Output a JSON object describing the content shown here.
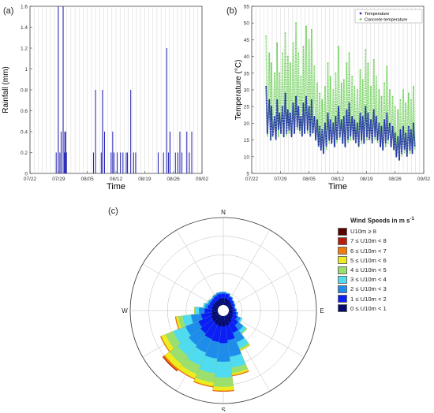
{
  "panels": {
    "a": "(a)",
    "b": "(b)",
    "c": "(c)"
  },
  "chart_data": [
    {
      "type": "bar",
      "panel": "(a)",
      "xlabel": "Time",
      "ylabel": "Rainfall (mm)",
      "xlim": [
        "07/22",
        "09/02"
      ],
      "ylim": [
        0,
        1.6
      ],
      "xticks": [
        "07/22",
        "07/29",
        "08/05",
        "08/12",
        "08/19",
        "08/26",
        "09/02"
      ],
      "yticks": [
        "0",
        "0.2",
        "0.4",
        "0.6",
        "0.8",
        "1",
        "1.2",
        "1.4",
        "1.6"
      ],
      "grid": true,
      "series": [
        {
          "color": "#1f1fb4",
          "x_days": [
            6.4,
            6.9,
            7.3,
            7.6,
            8.1,
            8.4,
            8.6,
            8.9,
            15.5,
            16.0,
            17.4,
            17.7,
            18.2,
            19.8,
            20.2,
            20.5,
            21.3,
            22.1,
            22.7,
            23.5,
            23.8,
            24.6,
            25.3,
            25.8,
            31.3,
            32.6,
            33.4,
            33.8,
            34.2,
            35.5,
            36.1,
            36.6,
            37.1,
            38.3,
            38.9,
            39.5
          ],
          "values": [
            0.2,
            1.6,
            0.2,
            0.4,
            1.6,
            0.2,
            0.4,
            0.2,
            0.2,
            0.8,
            0.2,
            0.8,
            0.4,
            0.2,
            0.4,
            0.2,
            0.2,
            0.2,
            0.2,
            0.2,
            0.2,
            0.8,
            0.2,
            0.2,
            0.2,
            0.2,
            1.2,
            0.2,
            0.4,
            0.2,
            0.2,
            0.4,
            0.2,
            0.4,
            0.2,
            0.4
          ],
          "widths": [
            1,
            1,
            1,
            1,
            1,
            1,
            2,
            1,
            1,
            1,
            1,
            1,
            1,
            1,
            1,
            1,
            1,
            1,
            1,
            1,
            1,
            1,
            1,
            1,
            1,
            1,
            1,
            1,
            1,
            1,
            1,
            1,
            1,
            1,
            1,
            1
          ]
        }
      ]
    },
    {
      "type": "scatter",
      "panel": "(b)",
      "xlabel": "Time",
      "ylabel": "Temperature (°C)",
      "xlim": [
        "07/22",
        "09/02"
      ],
      "ylim": [
        5,
        55
      ],
      "xticks": [
        "07/22",
        "07/29",
        "08/05",
        "08/12",
        "08/19",
        "08/26",
        "09/02"
      ],
      "yticks": [
        "5",
        "10",
        "15",
        "20",
        "25",
        "30",
        "35",
        "40",
        "45",
        "50",
        "55"
      ],
      "grid": true,
      "legend": "top-right",
      "series": [
        {
          "name": "Temperature",
          "color": "#1f2fa8",
          "x_days": [
            3.5,
            4.3,
            4.8,
            5.6,
            6.2,
            6.8,
            7.5,
            8.2,
            8.8,
            9.4,
            10.1,
            10.8,
            11.4,
            12.0,
            12.6,
            13.3,
            14.0,
            14.6,
            15.3,
            16.0,
            16.6,
            17.2,
            17.9,
            18.6,
            19.2,
            19.9,
            20.5,
            21.2,
            21.9,
            22.5,
            23.2,
            23.8,
            24.5,
            25.1,
            25.8,
            26.5,
            27.1,
            27.8,
            28.4,
            29.1,
            29.8,
            30.4,
            31.1,
            31.7,
            32.4,
            33.0,
            33.7,
            34.4,
            35.0,
            35.7,
            36.3,
            37.0,
            37.6,
            38.3,
            38.9,
            39.5
          ],
          "min": [
            17,
            15,
            16,
            15,
            18,
            17,
            16,
            17,
            18,
            16,
            17,
            19,
            18,
            16,
            17,
            18,
            16,
            17,
            15,
            13,
            12,
            11,
            13,
            15,
            14,
            13,
            15,
            16,
            14,
            13,
            15,
            16,
            15,
            14,
            13,
            15,
            14,
            16,
            15,
            14,
            16,
            15,
            13,
            12,
            14,
            15,
            13,
            12,
            10,
            9,
            11,
            12,
            10,
            12,
            11,
            13
          ],
          "max": [
            31,
            27,
            25,
            22,
            27,
            23,
            25,
            29,
            24,
            23,
            26,
            28,
            25,
            22,
            26,
            28,
            25,
            27,
            22,
            21,
            19,
            18,
            20,
            23,
            21,
            20,
            22,
            25,
            21,
            22,
            24,
            26,
            22,
            21,
            20,
            23,
            22,
            25,
            23,
            21,
            24,
            22,
            20,
            19,
            21,
            23,
            20,
            19,
            17,
            16,
            18,
            19,
            17,
            19,
            18,
            20
          ]
        },
        {
          "name": "Concrete temperature",
          "color": "#6fd15a",
          "x_days": [
            3.5,
            4.3,
            4.8,
            5.6,
            6.2,
            6.8,
            7.5,
            8.2,
            8.8,
            9.4,
            10.1,
            10.8,
            11.4,
            12.0,
            12.6,
            13.3,
            14.0,
            14.6,
            15.3,
            16.0,
            16.6,
            17.2,
            17.9,
            18.6,
            19.2,
            19.9,
            20.5,
            21.2,
            21.9,
            22.5,
            23.2,
            23.8,
            24.5,
            25.1,
            25.8,
            26.5,
            27.1,
            27.8,
            28.4,
            29.1,
            29.8,
            30.4,
            31.1,
            31.7,
            32.4,
            33.0,
            33.7,
            34.4,
            35.0,
            35.7,
            36.3,
            37.0,
            37.6,
            38.3,
            38.9,
            39.5
          ],
          "min": [
            16,
            15,
            16,
            15,
            16,
            17,
            16,
            16,
            17,
            16,
            17,
            18,
            17,
            16,
            17,
            17,
            16,
            17,
            15,
            13,
            12,
            11,
            12,
            14,
            14,
            13,
            14,
            15,
            14,
            13,
            14,
            15,
            15,
            14,
            13,
            14,
            14,
            15,
            15,
            14,
            15,
            14,
            13,
            12,
            13,
            14,
            13,
            12,
            10,
            9,
            10,
            11,
            10,
            11,
            11,
            12
          ],
          "max": [
            46,
            41,
            38,
            35,
            44,
            35,
            41,
            47,
            40,
            38,
            44,
            50,
            41,
            34,
            43,
            49,
            45,
            48,
            37,
            32,
            29,
            27,
            31,
            38,
            34,
            30,
            35,
            43,
            32,
            33,
            38,
            41,
            34,
            31,
            30,
            36,
            33,
            42,
            38,
            31,
            39,
            34,
            30,
            28,
            32,
            37,
            30,
            28,
            25,
            24,
            27,
            30,
            26,
            29,
            27,
            31
          ]
        }
      ]
    },
    {
      "type": "wind-rose",
      "panel": "(c)",
      "title": "",
      "directions": [
        "N",
        "E",
        "S",
        "W"
      ],
      "sector_angles_deg": [
        0,
        15,
        30,
        45,
        60,
        75,
        90,
        105,
        120,
        135,
        150,
        165,
        180,
        195,
        210,
        225,
        240,
        255,
        270,
        285,
        300,
        315,
        330,
        345
      ],
      "legend": {
        "title": "Wind Speeds in m s",
        "title_unit_sup": "-1",
        "bins": [
          {
            "label": "U10m ≥ 8",
            "color": "#5a0000"
          },
          {
            "label": "7 ≤ U10m < 8",
            "color": "#b81d0c"
          },
          {
            "label": "6 ≤ U10m < 7",
            "color": "#f07a0a"
          },
          {
            "label": "5 ≤ U10m < 6",
            "color": "#ecec1e"
          },
          {
            "label": "4 ≤ U10m < 5",
            "color": "#9be06e"
          },
          {
            "label": "3 ≤ U10m < 4",
            "color": "#4fdcf0"
          },
          {
            "label": "2 ≤ U10m < 3",
            "color": "#1e8ceb"
          },
          {
            "label": "1 ≤ U10m < 2",
            "color": "#0a1ef5"
          },
          {
            "label": "0 ≤ U10m < 1",
            "color": "#050a6e"
          }
        ]
      },
      "sectors_cumulative_fraction": [
        [
          0.13,
          0.18,
          0.2,
          0.2,
          0.2,
          0.2,
          0.2,
          0.2,
          0.2
        ],
        [
          0.13,
          0.18,
          0.19,
          0.19,
          0.19,
          0.19,
          0.19,
          0.19,
          0.19
        ],
        [
          0.12,
          0.16,
          0.17,
          0.17,
          0.17,
          0.17,
          0.17,
          0.17,
          0.17
        ],
        [
          0.11,
          0.14,
          0.15,
          0.15,
          0.15,
          0.15,
          0.15,
          0.15,
          0.15
        ],
        [
          0.1,
          0.13,
          0.14,
          0.14,
          0.14,
          0.14,
          0.14,
          0.14,
          0.14
        ],
        [
          0.1,
          0.12,
          0.13,
          0.13,
          0.13,
          0.13,
          0.13,
          0.13,
          0.13
        ],
        [
          0.1,
          0.13,
          0.14,
          0.14,
          0.14,
          0.14,
          0.14,
          0.14,
          0.14
        ],
        [
          0.1,
          0.14,
          0.16,
          0.16,
          0.16,
          0.16,
          0.16,
          0.16,
          0.16
        ],
        [
          0.11,
          0.16,
          0.2,
          0.22,
          0.22,
          0.22,
          0.22,
          0.22,
          0.22
        ],
        [
          0.12,
          0.2,
          0.27,
          0.31,
          0.32,
          0.32,
          0.32,
          0.32,
          0.32
        ],
        [
          0.14,
          0.26,
          0.37,
          0.44,
          0.46,
          0.47,
          0.47,
          0.47,
          0.47
        ],
        [
          0.16,
          0.32,
          0.5,
          0.62,
          0.68,
          0.7,
          0.71,
          0.71,
          0.71
        ],
        [
          0.17,
          0.35,
          0.55,
          0.72,
          0.82,
          0.86,
          0.87,
          0.87,
          0.87
        ],
        [
          0.17,
          0.34,
          0.52,
          0.68,
          0.78,
          0.82,
          0.83,
          0.83,
          0.83
        ],
        [
          0.16,
          0.33,
          0.49,
          0.64,
          0.74,
          0.79,
          0.8,
          0.8,
          0.8
        ],
        [
          0.15,
          0.31,
          0.47,
          0.62,
          0.73,
          0.79,
          0.81,
          0.82,
          0.82
        ],
        [
          0.14,
          0.29,
          0.44,
          0.58,
          0.67,
          0.72,
          0.73,
          0.73,
          0.73
        ],
        [
          0.13,
          0.24,
          0.35,
          0.44,
          0.49,
          0.51,
          0.52,
          0.52,
          0.52
        ],
        [
          0.12,
          0.2,
          0.26,
          0.3,
          0.31,
          0.31,
          0.31,
          0.31,
          0.31
        ],
        [
          0.12,
          0.17,
          0.2,
          0.22,
          0.22,
          0.22,
          0.22,
          0.22,
          0.22
        ],
        [
          0.12,
          0.16,
          0.18,
          0.19,
          0.19,
          0.19,
          0.19,
          0.19,
          0.19
        ],
        [
          0.12,
          0.16,
          0.18,
          0.18,
          0.18,
          0.18,
          0.18,
          0.18,
          0.18
        ],
        [
          0.12,
          0.17,
          0.19,
          0.19,
          0.19,
          0.19,
          0.19,
          0.19,
          0.19
        ],
        [
          0.13,
          0.18,
          0.2,
          0.2,
          0.2,
          0.2,
          0.2,
          0.2,
          0.2
        ]
      ]
    }
  ]
}
